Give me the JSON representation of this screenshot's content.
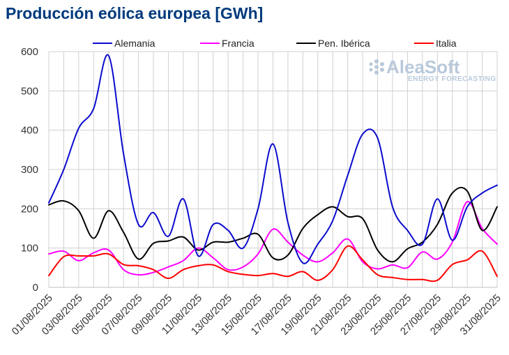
{
  "title": "Producción eólica europea [GWh]",
  "watermark": {
    "main": "AleaSoft",
    "sub": "ENERGY FORECASTING"
  },
  "chart_data": {
    "type": "line",
    "title": "Producción eólica europea [GWh]",
    "ylim": [
      0,
      600
    ],
    "yticks": [
      0,
      100,
      200,
      300,
      400,
      500,
      600
    ],
    "grid": true,
    "legend_position": "top",
    "x": [
      "01/08/2025",
      "02/08/2025",
      "03/08/2025",
      "04/08/2025",
      "05/08/2025",
      "06/08/2025",
      "07/08/2025",
      "08/08/2025",
      "09/08/2025",
      "10/08/2025",
      "11/08/2025",
      "12/08/2025",
      "13/08/2025",
      "14/08/2025",
      "15/08/2025",
      "16/08/2025",
      "17/08/2025",
      "18/08/2025",
      "19/08/2025",
      "20/08/2025",
      "21/08/2025",
      "22/08/2025",
      "23/08/2025",
      "24/08/2025",
      "25/08/2025",
      "26/08/2025",
      "27/08/2025",
      "28/08/2025",
      "29/08/2025",
      "30/08/2025",
      "31/08/2025"
    ],
    "x_tick_labels": [
      "01/08/2025",
      "03/08/2025",
      "05/08/2025",
      "07/08/2025",
      "09/08/2025",
      "11/08/2025",
      "13/08/2025",
      "15/08/2025",
      "17/08/2025",
      "19/08/2025",
      "21/08/2025",
      "23/08/2025",
      "25/08/2025",
      "27/08/2025",
      "29/08/2025",
      "31/08/2025"
    ],
    "series": [
      {
        "name": "Alemania",
        "color": "#0a0acd",
        "values": [
          215,
          300,
          405,
          455,
          590,
          340,
          160,
          190,
          130,
          225,
          80,
          160,
          145,
          100,
          200,
          365,
          165,
          62,
          110,
          170,
          285,
          390,
          380,
          205,
          145,
          110,
          225,
          120,
          205,
          240,
          260
        ]
      },
      {
        "name": "Francia",
        "color": "#ff00ff",
        "values": [
          85,
          92,
          68,
          88,
          95,
          45,
          32,
          38,
          52,
          68,
          100,
          75,
          45,
          52,
          85,
          148,
          115,
          82,
          65,
          88,
          123,
          65,
          47,
          57,
          50,
          90,
          72,
          115,
          218,
          150,
          110
        ]
      },
      {
        "name": "Pen. Ibérica",
        "color": "#000000",
        "values": [
          210,
          220,
          195,
          125,
          195,
          140,
          72,
          112,
          118,
          128,
          95,
          115,
          115,
          125,
          135,
          75,
          82,
          150,
          185,
          205,
          180,
          175,
          95,
          65,
          98,
          115,
          160,
          240,
          245,
          145,
          205
        ]
      },
      {
        "name": "Italia",
        "color": "#ff0000",
        "values": [
          30,
          78,
          80,
          80,
          85,
          58,
          55,
          45,
          23,
          45,
          55,
          57,
          40,
          33,
          30,
          35,
          28,
          40,
          18,
          45,
          105,
          70,
          32,
          25,
          20,
          20,
          18,
          58,
          70,
          92,
          28
        ]
      }
    ]
  }
}
